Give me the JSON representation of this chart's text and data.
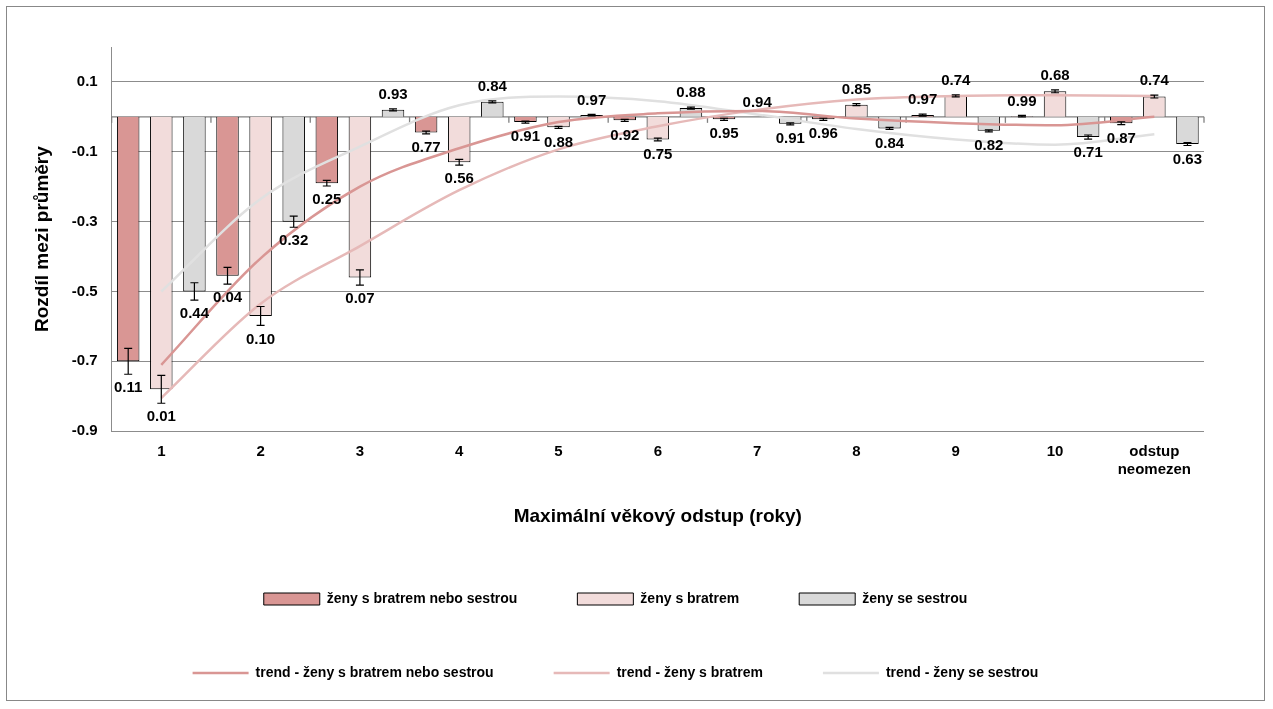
{
  "chart_data": {
    "type": "bar",
    "xlabel": "Maximální věkový odstup (roky)",
    "ylabel": "Rozdíl mezi průměry",
    "categories": [
      "1",
      "2",
      "3",
      "4",
      "5",
      "6",
      "7",
      "8",
      "9",
      "10",
      "odstup neomezen"
    ],
    "series": [
      {
        "name": "ženy s bratrem nebo sestrou",
        "color": "#d99694",
        "values": [
          -0.7,
          -0.455,
          -0.19,
          -0.045,
          -0.015,
          -0.01,
          -0.007,
          -0.007,
          0.005,
          0.002,
          -0.018
        ],
        "errors": [
          0.037,
          0.024,
          0.008,
          0.004,
          0.003,
          0.003,
          0.003,
          0.003,
          0.003,
          0.002,
          0.004
        ]
      },
      {
        "name": "ženy s bratrem",
        "color": "#f2dcdb",
        "values": [
          -0.78,
          -0.57,
          -0.46,
          -0.13,
          -0.03,
          -0.065,
          null,
          0.035,
          0.06,
          0.073,
          0.058
        ],
        "errors": [
          0.04,
          0.027,
          0.022,
          0.008,
          0.003,
          0.004,
          null,
          0.003,
          0.003,
          0.004,
          0.004
        ]
      },
      {
        "name": "ženy se sestrou",
        "color": "#d9d9d9",
        "values": [
          -0.5,
          -0.3,
          0.02,
          0.043,
          0.005,
          0.025,
          -0.02,
          -0.033,
          -0.04,
          -0.058,
          -0.078
        ],
        "errors": [
          0.025,
          0.016,
          0.003,
          0.003,
          0.002,
          0.003,
          0.003,
          0.003,
          0.003,
          0.006,
          0.004
        ]
      },
      {
        "name": "trend - ženy s bratrem nebo sestrou",
        "type": "line",
        "color": "#d99694",
        "values": [
          -0.71,
          -0.405,
          -0.2,
          -0.09,
          -0.015,
          0.01,
          0.017,
          -0.005,
          -0.018,
          -0.024,
          0.0
        ]
      },
      {
        "name": "trend - ženy s bratrem",
        "type": "line",
        "color": "#e6b9b8",
        "values": [
          -0.805,
          -0.535,
          -0.37,
          -0.21,
          -0.093,
          -0.027,
          0.02,
          0.05,
          0.06,
          0.062,
          0.06
        ]
      },
      {
        "name": "trend - ženy se sestrou",
        "type": "line",
        "color": "#e0e0e0",
        "values": [
          -0.5,
          -0.235,
          -0.085,
          0.033,
          0.058,
          0.045,
          0.007,
          -0.035,
          -0.065,
          -0.08,
          -0.05
        ]
      }
    ],
    "ylim": [
      -0.9,
      0.2
    ],
    "yticks": [
      0.1,
      -0.1,
      -0.3,
      -0.5,
      -0.7,
      -0.9
    ],
    "grid": "y",
    "legend": "bottom",
    "marker": "none",
    "ref_lines": [
      {
        "axis": "y",
        "value": 0,
        "color": "#808080"
      }
    ],
    "annotations": [
      "0.11",
      "0.01",
      "0.44",
      "0.04",
      "0.10",
      "0.32",
      "0.25",
      "0.07",
      "0.93",
      "0.77",
      "0.56",
      "0.84",
      "0.91",
      "0.88",
      "0.97",
      "0.92",
      "0.75",
      "0.88",
      "0.95",
      "0.94",
      "0.91",
      "0.96",
      "0.85",
      "0.84",
      "0.97",
      "0.74",
      "0.82",
      "0.99",
      "0.68",
      "0.71",
      "0.87",
      "0.74",
      "0.63"
    ]
  }
}
